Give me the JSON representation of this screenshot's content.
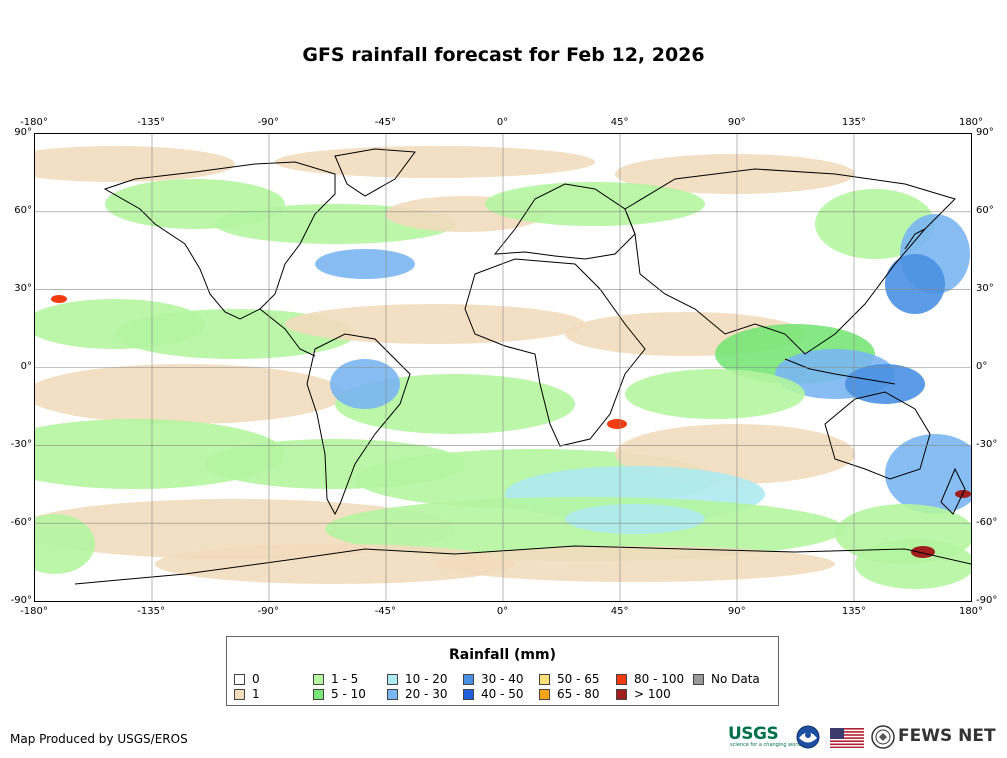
{
  "title": "GFS rainfall forecast for Feb 12, 2026",
  "map": {
    "lon_ticks": [
      "-180°",
      "-135°",
      "-90°",
      "-45°",
      "0°",
      "45°",
      "90°",
      "135°",
      "180°"
    ],
    "lat_ticks": [
      "90°",
      "60°",
      "30°",
      "0°",
      "-30°",
      "-60°",
      "-90°"
    ],
    "lon_range": [
      -180,
      180
    ],
    "lat_range": [
      -90,
      90
    ],
    "graticule_step_deg": 45,
    "graticule_lat_step_deg": 30
  },
  "legend": {
    "title": "Rainfall (mm)",
    "items": [
      {
        "label": "0",
        "color": "#ffffff"
      },
      {
        "label": "1",
        "color": "#f2dcbc"
      },
      {
        "label": "1 - 5",
        "color": "#b4f5a0"
      },
      {
        "label": "5 - 10",
        "color": "#78e678"
      },
      {
        "label": "10 - 20",
        "color": "#aeeaf0"
      },
      {
        "label": "20 - 30",
        "color": "#7ab6f2"
      },
      {
        "label": "30 - 40",
        "color": "#4a90e2"
      },
      {
        "label": "40 - 50",
        "color": "#1f5fd9"
      },
      {
        "label": "50 - 65",
        "color": "#fbe07a"
      },
      {
        "label": "65 - 80",
        "color": "#f5a41a"
      },
      {
        "label": "80 - 100",
        "color": "#f03c10"
      },
      {
        "label": "> 100",
        "color": "#a01e1e"
      },
      {
        "label": "No Data",
        "color": "#999999"
      }
    ]
  },
  "footer": {
    "credit": "Map Produced by USGS/EROS",
    "usgs_logo": "USGS",
    "usgs_tagline": "science for a changing world",
    "fews_logo": "FEWS NET"
  }
}
